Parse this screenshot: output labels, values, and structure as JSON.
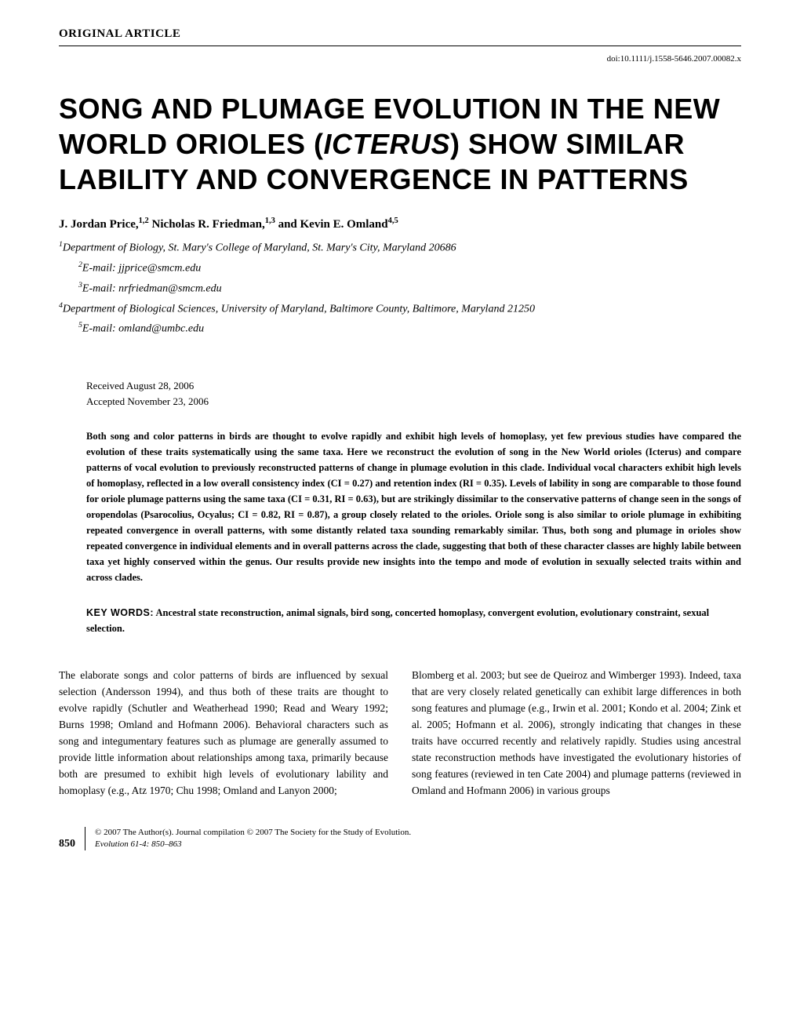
{
  "header": {
    "article_type": "ORIGINAL ARTICLE",
    "doi": "doi:10.1111/j.1558-5646.2007.00082.x"
  },
  "title": {
    "line1": "SONG AND PLUMAGE EVOLUTION IN THE NEW WORLD ORIOLES (",
    "italic": "ICTERUS",
    "line2": ") SHOW SIMILAR LABILITY AND CONVERGENCE IN PATTERNS"
  },
  "authors": "J. Jordan Price,1,2 Nicholas R. Friedman,1,3 and Kevin E. Omland4,5",
  "affiliations": [
    {
      "sup": "1",
      "text": "Department of Biology, St. Mary's College of Maryland, St. Mary's City, Maryland 20686",
      "indent": false
    },
    {
      "sup": "2",
      "text": "E-mail: jjprice@smcm.edu",
      "indent": true
    },
    {
      "sup": "3",
      "text": "E-mail: nrfriedman@smcm.edu",
      "indent": true
    },
    {
      "sup": "4",
      "text": "Department of Biological Sciences, University of Maryland, Baltimore County, Baltimore, Maryland 21250",
      "indent": false
    },
    {
      "sup": "5",
      "text": "E-mail: omland@umbc.edu",
      "indent": true
    }
  ],
  "dates": {
    "received": "Received August 28, 2006",
    "accepted": "Accepted November 23, 2006"
  },
  "abstract": "Both song and color patterns in birds are thought to evolve rapidly and exhibit high levels of homoplasy, yet few previous studies have compared the evolution of these traits systematically using the same taxa. Here we reconstruct the evolution of song in the New World orioles (Icterus) and compare patterns of vocal evolution to previously reconstructed patterns of change in plumage evolution in this clade. Individual vocal characters exhibit high levels of homoplasy, reflected in a low overall consistency index (CI = 0.27) and retention index (RI = 0.35). Levels of lability in song are comparable to those found for oriole plumage patterns using the same taxa (CI = 0.31, RI = 0.63), but are strikingly dissimilar to the conservative patterns of change seen in the songs of oropendolas (Psarocolius, Ocyalus; CI = 0.82, RI = 0.87), a group closely related to the orioles. Oriole song is also similar to oriole plumage in exhibiting repeated convergence in overall patterns, with some distantly related taxa sounding remarkably similar. Thus, both song and plumage in orioles show repeated convergence in individual elements and in overall patterns across the clade, suggesting that both of these character classes are highly labile between taxa yet highly conserved within the genus. Our results provide new insights into the tempo and mode of evolution in sexually selected traits within and across clades.",
  "keywords": {
    "label": "KEY WORDS:",
    "text": "Ancestral state reconstruction, animal signals, bird song, concerted homoplasy, convergent evolution, evolutionary constraint, sexual selection."
  },
  "body": {
    "col1": "The elaborate songs and color patterns of birds are influenced by sexual selection (Andersson 1994), and thus both of these traits are thought to evolve rapidly (Schutler and Weatherhead 1990; Read and Weary 1992; Burns 1998; Omland and Hofmann 2006). Behavioral characters such as song and integumentary features such as plumage are generally assumed to provide little information about relationships among taxa, primarily because both are presumed to exhibit high levels of evolutionary lability and homoplasy (e.g., Atz 1970; Chu 1998; Omland and Lanyon 2000;",
    "col2": "Blomberg et al. 2003; but see de Queiroz and Wimberger 1993). Indeed, taxa that are very closely related genetically can exhibit large differences in both song features and plumage (e.g., Irwin et al. 2001; Kondo et al. 2004; Zink et al. 2005; Hofmann et al. 2006), strongly indicating that changes in these traits have occurred recently and relatively rapidly. Studies using ancestral state reconstruction methods have investigated the evolutionary histories of song features (reviewed in ten Cate 2004) and plumage patterns (reviewed in Omland and Hofmann 2006) in various groups"
  },
  "footer": {
    "page_num": "850",
    "copyright": "© 2007 The Author(s). Journal compilation © 2007 The Society for the Study of Evolution.",
    "journal_ref": "Evolution 61-4: 850–863"
  }
}
